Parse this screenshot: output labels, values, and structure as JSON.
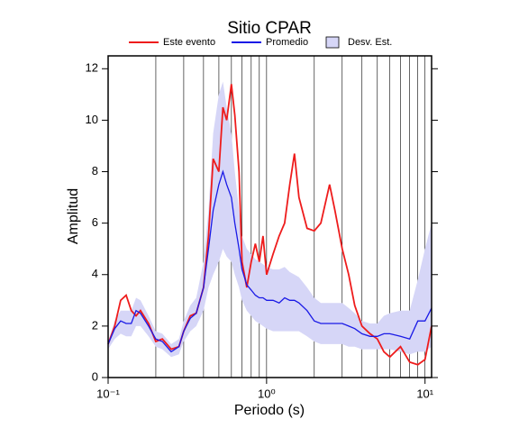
{
  "chart_data": {
    "type": "line",
    "title": "Sitio CPAR",
    "x_label": "Periodo (s)",
    "y_label": "Amplitud",
    "x_scale": "log",
    "xlim": [
      0.1,
      11
    ],
    "ylim": [
      0,
      12.5
    ],
    "xticks": [
      {
        "value": 0.1,
        "label": "10⁻¹"
      },
      {
        "value": 1,
        "label": "10⁰"
      },
      {
        "value": 10,
        "label": "10¹"
      }
    ],
    "xminorticks": [
      0.2,
      0.3,
      0.4,
      0.5,
      0.6,
      0.7,
      0.8,
      0.9,
      2,
      3,
      4,
      5,
      6,
      7,
      8,
      9
    ],
    "yticks": [
      0,
      2,
      4,
      6,
      8,
      10,
      12
    ],
    "grid": true,
    "x": [
      0.1,
      0.11,
      0.12,
      0.13,
      0.14,
      0.15,
      0.16,
      0.18,
      0.2,
      0.22,
      0.25,
      0.28,
      0.3,
      0.33,
      0.36,
      0.4,
      0.43,
      0.46,
      0.5,
      0.53,
      0.56,
      0.6,
      0.63,
      0.67,
      0.7,
      0.75,
      0.8,
      0.85,
      0.9,
      0.95,
      1.0,
      1.1,
      1.2,
      1.3,
      1.4,
      1.5,
      1.6,
      1.8,
      2.0,
      2.2,
      2.5,
      2.7,
      3.0,
      3.3,
      3.6,
      4,
      4.5,
      5,
      5.5,
      6,
      7,
      8,
      9,
      10,
      11
    ],
    "series": [
      {
        "name": "Este evento",
        "color": "#ee1c1c",
        "values": [
          1.3,
          2.0,
          3.0,
          3.2,
          2.6,
          2.4,
          2.6,
          2.1,
          1.4,
          1.5,
          1.1,
          1.2,
          1.8,
          2.4,
          2.5,
          3.5,
          5.5,
          8.5,
          8.0,
          10.5,
          10.0,
          11.4,
          10.2,
          8.0,
          4.5,
          3.5,
          4.5,
          5.2,
          4.5,
          5.5,
          4.0,
          4.8,
          5.5,
          6.0,
          7.5,
          8.7,
          7.0,
          5.8,
          5.7,
          6.0,
          7.5,
          6.5,
          5.0,
          4.0,
          2.8,
          2.0,
          1.7,
          1.5,
          1.0,
          0.8,
          1.2,
          0.6,
          0.5,
          0.7,
          2.0
        ]
      },
      {
        "name": "Promedio",
        "color": "#1a1ae6",
        "values": [
          1.3,
          1.9,
          2.2,
          2.1,
          2.1,
          2.6,
          2.5,
          2.0,
          1.5,
          1.4,
          1.0,
          1.2,
          1.8,
          2.3,
          2.5,
          3.5,
          5.0,
          6.5,
          7.5,
          8.0,
          7.5,
          7.0,
          6.0,
          5.0,
          4.2,
          3.6,
          3.4,
          3.2,
          3.1,
          3.1,
          3.0,
          3.0,
          2.9,
          3.1,
          3.0,
          3.0,
          2.9,
          2.6,
          2.2,
          2.1,
          2.1,
          2.1,
          2.1,
          2.0,
          1.9,
          1.7,
          1.6,
          1.6,
          1.7,
          1.7,
          1.6,
          1.5,
          2.2,
          2.2,
          2.7
        ]
      },
      {
        "name": "Desv. Est.",
        "color": "#d6d6f7",
        "upper": [
          1.4,
          2.2,
          2.6,
          2.6,
          2.6,
          3.1,
          3.0,
          2.4,
          1.8,
          1.7,
          1.3,
          1.5,
          2.2,
          2.8,
          3.1,
          4.5,
          6.5,
          9.5,
          11.0,
          11.5,
          10.5,
          9.5,
          8.0,
          6.5,
          5.5,
          5.0,
          4.8,
          4.6,
          4.5,
          4.4,
          4.3,
          4.2,
          4.2,
          4.3,
          4.1,
          4.0,
          3.9,
          3.5,
          3.1,
          2.9,
          2.9,
          2.9,
          2.9,
          2.7,
          2.5,
          2.2,
          2.1,
          2.1,
          2.4,
          2.5,
          2.6,
          2.6,
          3.8,
          5.0,
          6.0
        ],
        "lower": [
          1.1,
          1.5,
          1.7,
          1.6,
          1.6,
          2.0,
          2.0,
          1.6,
          1.2,
          1.1,
          0.8,
          0.9,
          1.4,
          1.8,
          2.0,
          2.6,
          3.5,
          4.0,
          4.5,
          5.0,
          4.7,
          4.5,
          4.0,
          3.5,
          3.0,
          2.6,
          2.4,
          2.2,
          2.1,
          2.0,
          1.9,
          1.8,
          1.8,
          1.8,
          1.8,
          1.8,
          1.8,
          1.6,
          1.4,
          1.3,
          1.3,
          1.3,
          1.3,
          1.2,
          1.2,
          1.1,
          1.1,
          1.1,
          1.1,
          1.1,
          1.0,
          0.9,
          1.0,
          1.0,
          1.2
        ]
      }
    ]
  }
}
